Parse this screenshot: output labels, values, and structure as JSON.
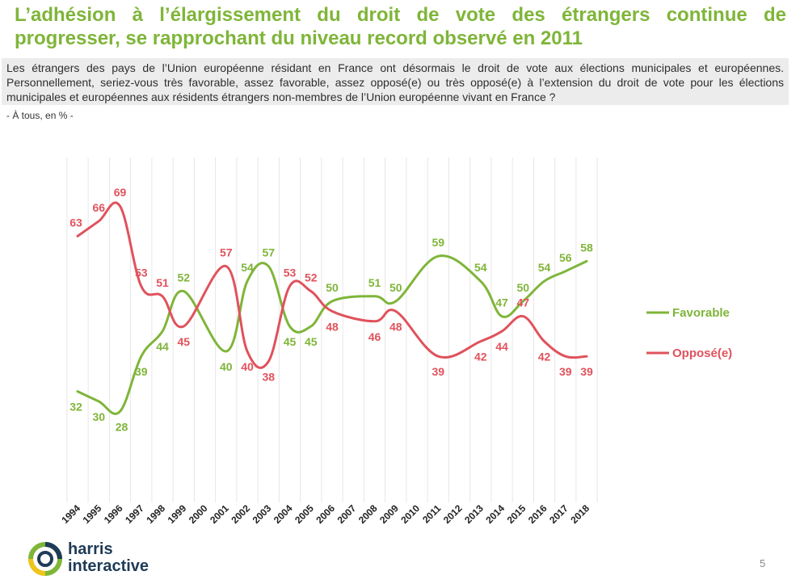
{
  "title": "L’adhésion à l’élargissement du droit de vote des étrangers continue de progresser, se rapprochant du niveau record observé en 2011",
  "question": "Les étrangers des pays de l’Union européenne résidant en France ont désormais le droit de vote aux élections municipales et européennes. Personnellement, seriez-vous très favorable, assez favorable, assez opposé(e) ou très opposé(e) à l’extension du droit de vote pour les élections municipales et européennes aux résidents étrangers non-membres de l’Union européenne vivant en France ?",
  "base": "- À tous, en % -",
  "logo": {
    "line1": "harris",
    "line2": "interactive"
  },
  "page_number": "5",
  "colors": {
    "favorable": "#7fb539",
    "oppose": "#e0525c",
    "title": "#7fb539"
  },
  "chart_data": {
    "type": "line",
    "categories": [
      "1994",
      "1995",
      "1996",
      "1997",
      "1998",
      "1999",
      "2000",
      "2001",
      "2002",
      "2003",
      "2004",
      "2005",
      "2006",
      "2007",
      "2008",
      "2009",
      "2010",
      "2011",
      "2012",
      "2013",
      "2014",
      "2015",
      "2016",
      "2017",
      "2018"
    ],
    "series": [
      {
        "name": "Favorable",
        "color": "#7fb539",
        "points": [
          {
            "x": "1994",
            "value": 32
          },
          {
            "x": "1995",
            "value": 30
          },
          {
            "x": "1996",
            "value": 28
          },
          {
            "x": "1997",
            "value": 39
          },
          {
            "x": "1998",
            "value": 44
          },
          {
            "x": "1999",
            "value": 52
          },
          {
            "x": "2001",
            "value": 40
          },
          {
            "x": "2002",
            "value": 54
          },
          {
            "x": "2003",
            "value": 57
          },
          {
            "x": "2004",
            "value": 45
          },
          {
            "x": "2005",
            "value": 45
          },
          {
            "x": "2006",
            "value": 50
          },
          {
            "x": "2008",
            "value": 51
          },
          {
            "x": "2009",
            "value": 50
          },
          {
            "x": "2011",
            "value": 59
          },
          {
            "x": "2013",
            "value": 54
          },
          {
            "x": "2014",
            "value": 47
          },
          {
            "x": "2015",
            "value": 50
          },
          {
            "x": "2016",
            "value": 54
          },
          {
            "x": "2017",
            "value": 56
          },
          {
            "x": "2018",
            "value": 58
          }
        ]
      },
      {
        "name": "Opposé(e)",
        "color": "#e0525c",
        "points": [
          {
            "x": "1994",
            "value": 63
          },
          {
            "x": "1995",
            "value": 66
          },
          {
            "x": "1996",
            "value": 69
          },
          {
            "x": "1997",
            "value": 53
          },
          {
            "x": "1998",
            "value": 51
          },
          {
            "x": "1999",
            "value": 45
          },
          {
            "x": "2001",
            "value": 57
          },
          {
            "x": "2002",
            "value": 40
          },
          {
            "x": "2003",
            "value": 38
          },
          {
            "x": "2004",
            "value": 53
          },
          {
            "x": "2005",
            "value": 52
          },
          {
            "x": "2006",
            "value": 48
          },
          {
            "x": "2008",
            "value": 46
          },
          {
            "x": "2009",
            "value": 48
          },
          {
            "x": "2011",
            "value": 39
          },
          {
            "x": "2013",
            "value": 42
          },
          {
            "x": "2014",
            "value": 44
          },
          {
            "x": "2015",
            "value": 47
          },
          {
            "x": "2016",
            "value": 42
          },
          {
            "x": "2017",
            "value": 39
          },
          {
            "x": "2018",
            "value": 39
          }
        ]
      }
    ],
    "title": "",
    "xlabel": "",
    "ylabel": "",
    "ylim": [
      0,
      100
    ],
    "grid": "vertical",
    "legend": "right"
  }
}
